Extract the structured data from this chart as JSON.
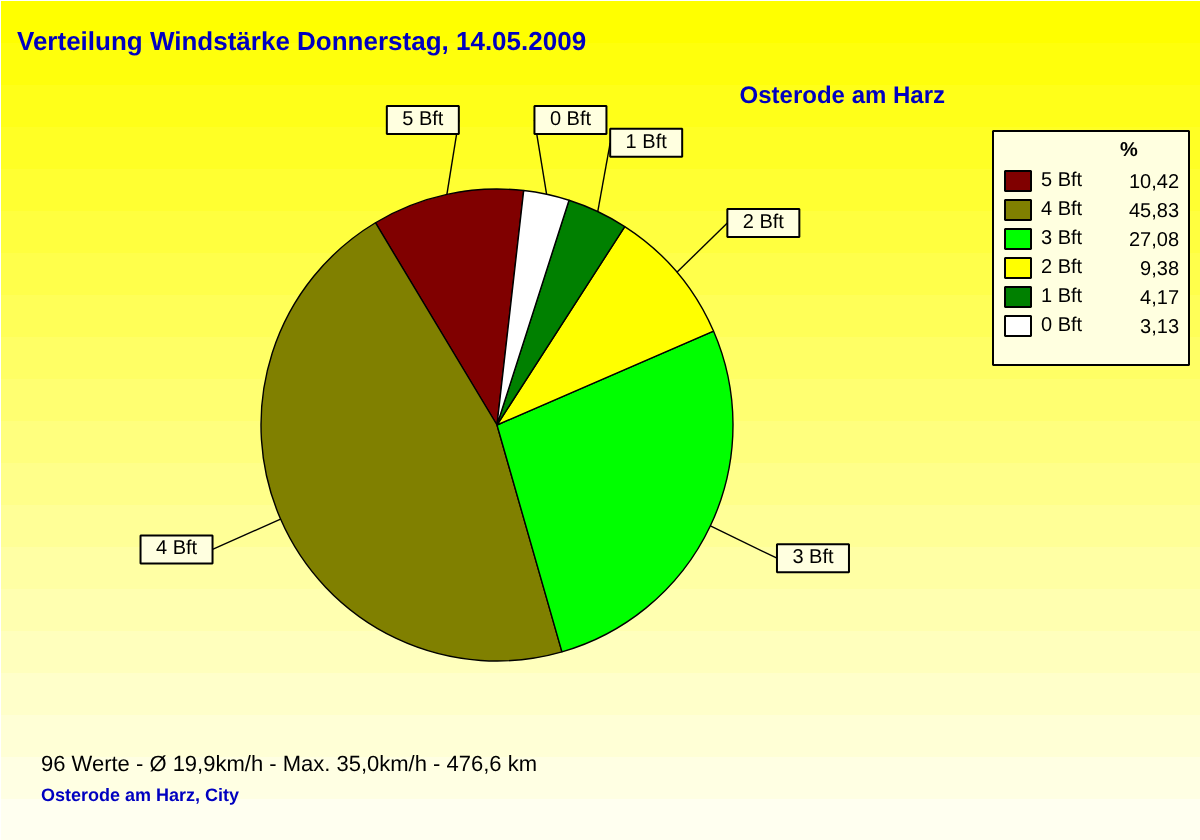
{
  "chart_data": {
    "type": "pie",
    "title": "Verteilung Windstärke  Donnerstag, 14.05.2009",
    "subtitle": "Osterode am Harz",
    "legend_title": "%",
    "categories": [
      "5 Bft",
      "4 Bft",
      "3 Bft",
      "2 Bft",
      "1 Bft",
      "0 Bft"
    ],
    "values": [
      10.42,
      45.83,
      27.08,
      9.38,
      4.17,
      3.13
    ],
    "value_labels": [
      "10,42",
      "45,83",
      "27,08",
      "9,38",
      "4,17",
      "3,13"
    ],
    "colors": [
      "#800000",
      "#808000",
      "#00ff00",
      "#ffff00",
      "#008000",
      "#ffffff"
    ],
    "legend": "top right",
    "annotations": [
      "96 Werte   -   Ø 19,9km/h  -  Max. 35,0km/h   -   476,6 km",
      "Osterode am Harz, City"
    ]
  }
}
